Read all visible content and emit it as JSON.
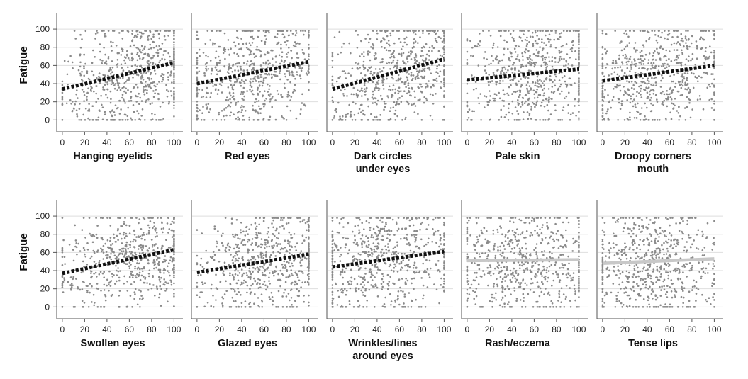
{
  "chart_data": {
    "type": "scatter",
    "layout": "small multiples, 2 rows x 5 columns, shared y axis label per row",
    "ylabel": "Fatigue",
    "xlim": [
      -5,
      108
    ],
    "ylim": [
      -13,
      118
    ],
    "x_ticks": [
      "0",
      "20",
      "40",
      "60",
      "80",
      "100"
    ],
    "y_ticks": [
      "0",
      "20",
      "40",
      "60",
      "80",
      "100"
    ],
    "grid": "horizontal gridlines",
    "colors": {
      "points": "#8a8a8a",
      "significant_trend": "#111111",
      "nonsignificant_trend": "#c8c8c8",
      "grid": "#dedede",
      "axis": "#555555"
    },
    "panels": [
      {
        "xlabel": [
          "Hanging eyelids"
        ],
        "trend": {
          "x": [
            0,
            100
          ],
          "y": [
            34,
            63
          ]
        },
        "trend_style": "dotted-black",
        "scatter_center": 60
      },
      {
        "xlabel": [
          "Red eyes"
        ],
        "trend": {
          "x": [
            0,
            100
          ],
          "y": [
            40,
            64
          ]
        },
        "trend_style": "dotted-black",
        "scatter_center": 50
      },
      {
        "xlabel": [
          "Dark circles",
          "under eyes"
        ],
        "trend": {
          "x": [
            0,
            100
          ],
          "y": [
            34,
            67
          ]
        },
        "trend_style": "dotted-black",
        "scatter_center": 55
      },
      {
        "xlabel": [
          "Pale skin"
        ],
        "trend": {
          "x": [
            0,
            100
          ],
          "y": [
            44,
            56
          ]
        },
        "trend_style": "dotted-black",
        "scatter_center": 55
      },
      {
        "xlabel": [
          "Droopy corners",
          "mouth"
        ],
        "trend": {
          "x": [
            0,
            100
          ],
          "y": [
            43,
            60
          ]
        },
        "trend_style": "dotted-black",
        "scatter_center": 45
      },
      {
        "xlabel": [
          "Swollen eyes"
        ],
        "trend": {
          "x": [
            0,
            100
          ],
          "y": [
            37,
            63
          ]
        },
        "trend_style": "dotted-black",
        "scatter_center": 60
      },
      {
        "xlabel": [
          "Glazed eyes"
        ],
        "trend": {
          "x": [
            0,
            100
          ],
          "y": [
            38,
            58
          ]
        },
        "trend_style": "dotted-black",
        "scatter_center": 60
      },
      {
        "xlabel": [
          "Wrinkles/lines",
          "around eyes"
        ],
        "trend": {
          "x": [
            0,
            100
          ],
          "y": [
            44,
            61
          ]
        },
        "trend_style": "dotted-black",
        "scatter_center": 45
      },
      {
        "xlabel": [
          "Rash/eczema"
        ],
        "trend": {
          "x": [
            0,
            100
          ],
          "y": [
            51,
            52
          ]
        },
        "trend_style": "solid-light",
        "scatter_center": 50
      },
      {
        "xlabel": [
          "Tense lips"
        ],
        "trend": {
          "x": [
            0,
            100
          ],
          "y": [
            48,
            53
          ]
        },
        "trend_style": "solid-light",
        "scatter_center": 45
      }
    ]
  }
}
